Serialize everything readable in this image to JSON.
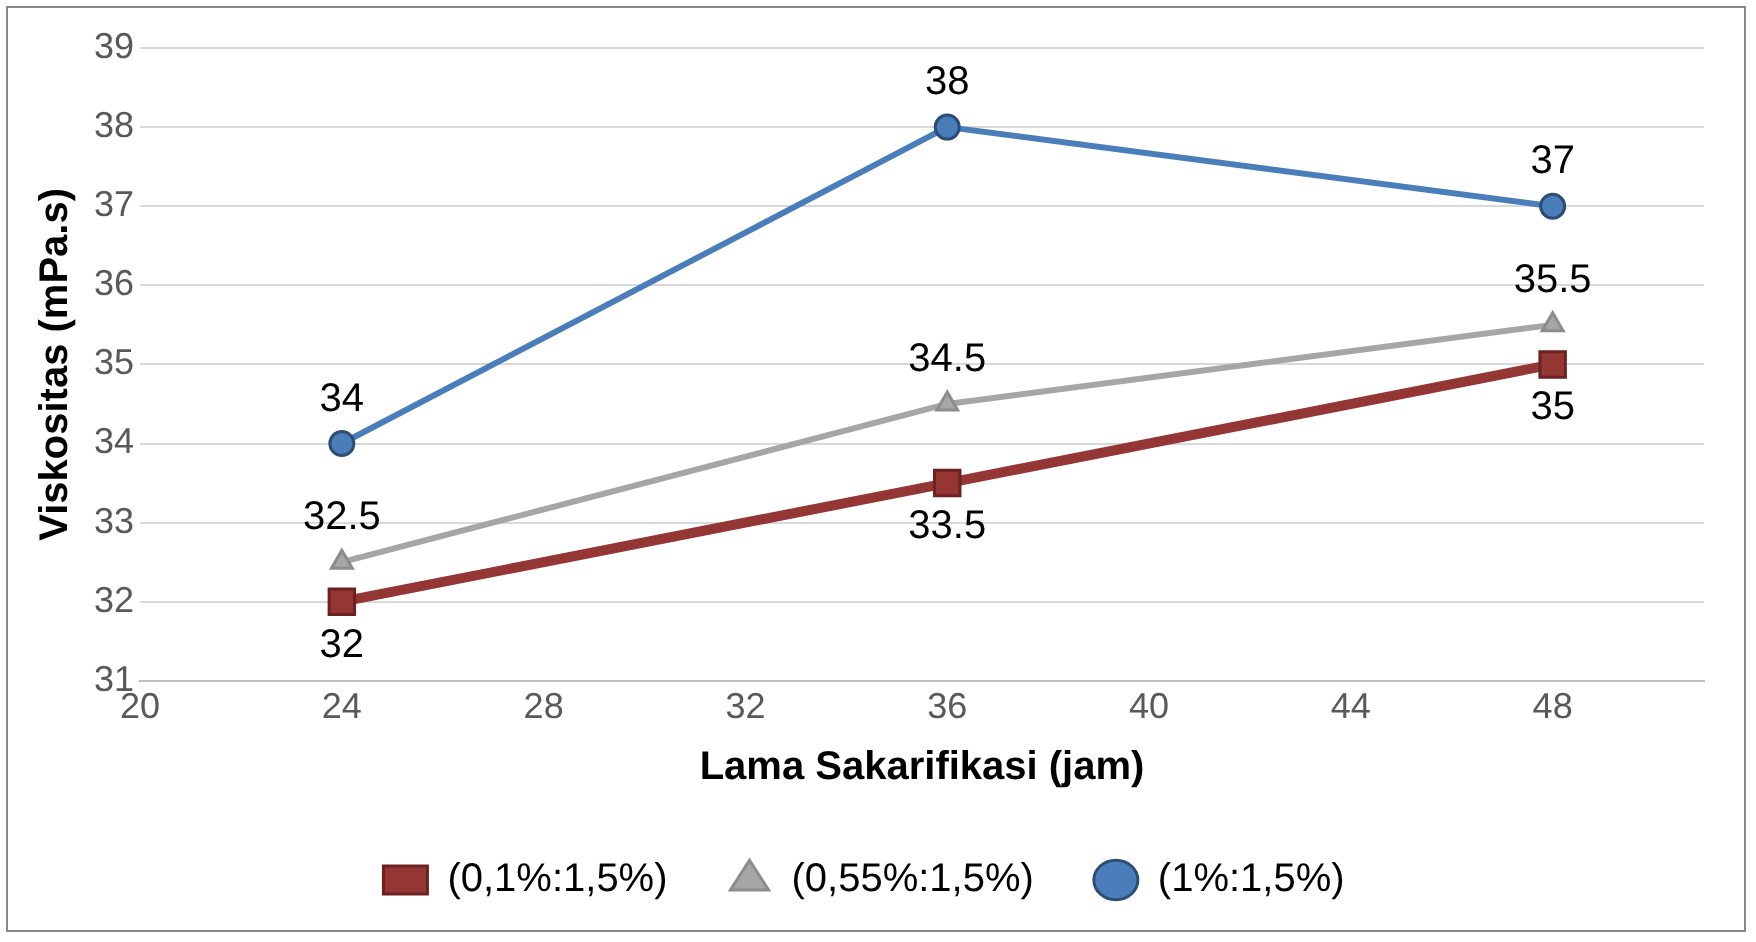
{
  "chart_data": {
    "type": "line",
    "xlabel": "Lama Sakarifikasi (jam)",
    "ylabel": "Viskositas (mPa.s)",
    "x": [
      24,
      36,
      48
    ],
    "series": [
      {
        "name": "(0,1%:1,5%)",
        "color": "#943634",
        "marker": "square",
        "values": [
          32,
          33.5,
          35
        ]
      },
      {
        "name": "(0,55%:1,5%)",
        "color": "#a6a6a6",
        "marker": "triangle",
        "values": [
          32.5,
          34.5,
          35.5
        ]
      },
      {
        "name": "(1%:1,5%)",
        "color": "#4a7ebb",
        "marker": "circle",
        "values": [
          34,
          38,
          37
        ]
      }
    ],
    "xlim": [
      20,
      51
    ],
    "xticks": [
      20,
      24,
      28,
      32,
      36,
      40,
      44,
      48
    ],
    "ylim": [
      31,
      39
    ],
    "yticks": [
      31,
      32,
      33,
      34,
      35,
      36,
      37,
      38,
      39
    ],
    "grid": "y",
    "legend": "bottom",
    "data_labels": true
  }
}
